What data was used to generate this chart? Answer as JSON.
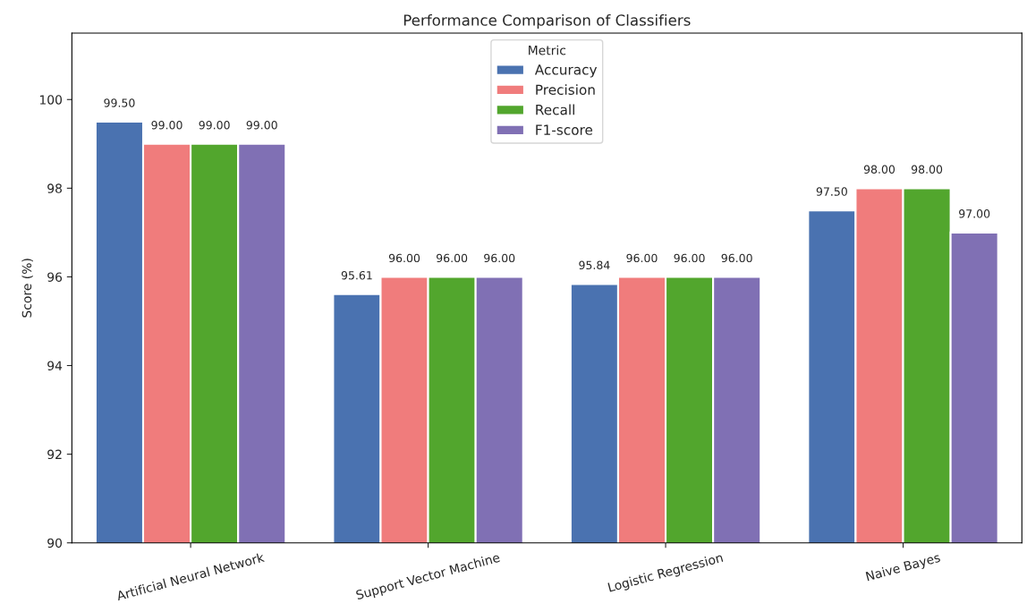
{
  "chart_data": {
    "type": "bar",
    "title": "Performance Comparison of Classifiers",
    "ylabel": "Score (%)",
    "legend_title": "Metric",
    "categories": [
      "Artificial Neural Network",
      "Support Vector Machine",
      "Logistic Regression",
      "Naive Bayes"
    ],
    "series": [
      {
        "name": "Accuracy",
        "color": "#4a72b0",
        "values": [
          99.5,
          95.61,
          95.84,
          97.5
        ]
      },
      {
        "name": "Precision",
        "color": "#f07c7c",
        "values": [
          99.0,
          96.0,
          96.0,
          98.0
        ]
      },
      {
        "name": "Recall",
        "color": "#52a62d",
        "values": [
          99.0,
          96.0,
          96.0,
          98.0
        ]
      },
      {
        "name": "F1-score",
        "color": "#8070b4",
        "values": [
          99.0,
          96.0,
          96.0,
          97.0
        ]
      }
    ],
    "value_labels": [
      [
        "99.50",
        "95.61",
        "95.84",
        "97.50"
      ],
      [
        "99.00",
        "96.00",
        "96.00",
        "98.00"
      ],
      [
        "99.00",
        "96.00",
        "96.00",
        "98.00"
      ],
      [
        "99.00",
        "96.00",
        "96.00",
        "97.00"
      ]
    ],
    "ylim": [
      90,
      101.5
    ],
    "yticks": [
      90,
      92,
      94,
      96,
      98,
      100
    ],
    "grid": false,
    "legend": "top"
  }
}
